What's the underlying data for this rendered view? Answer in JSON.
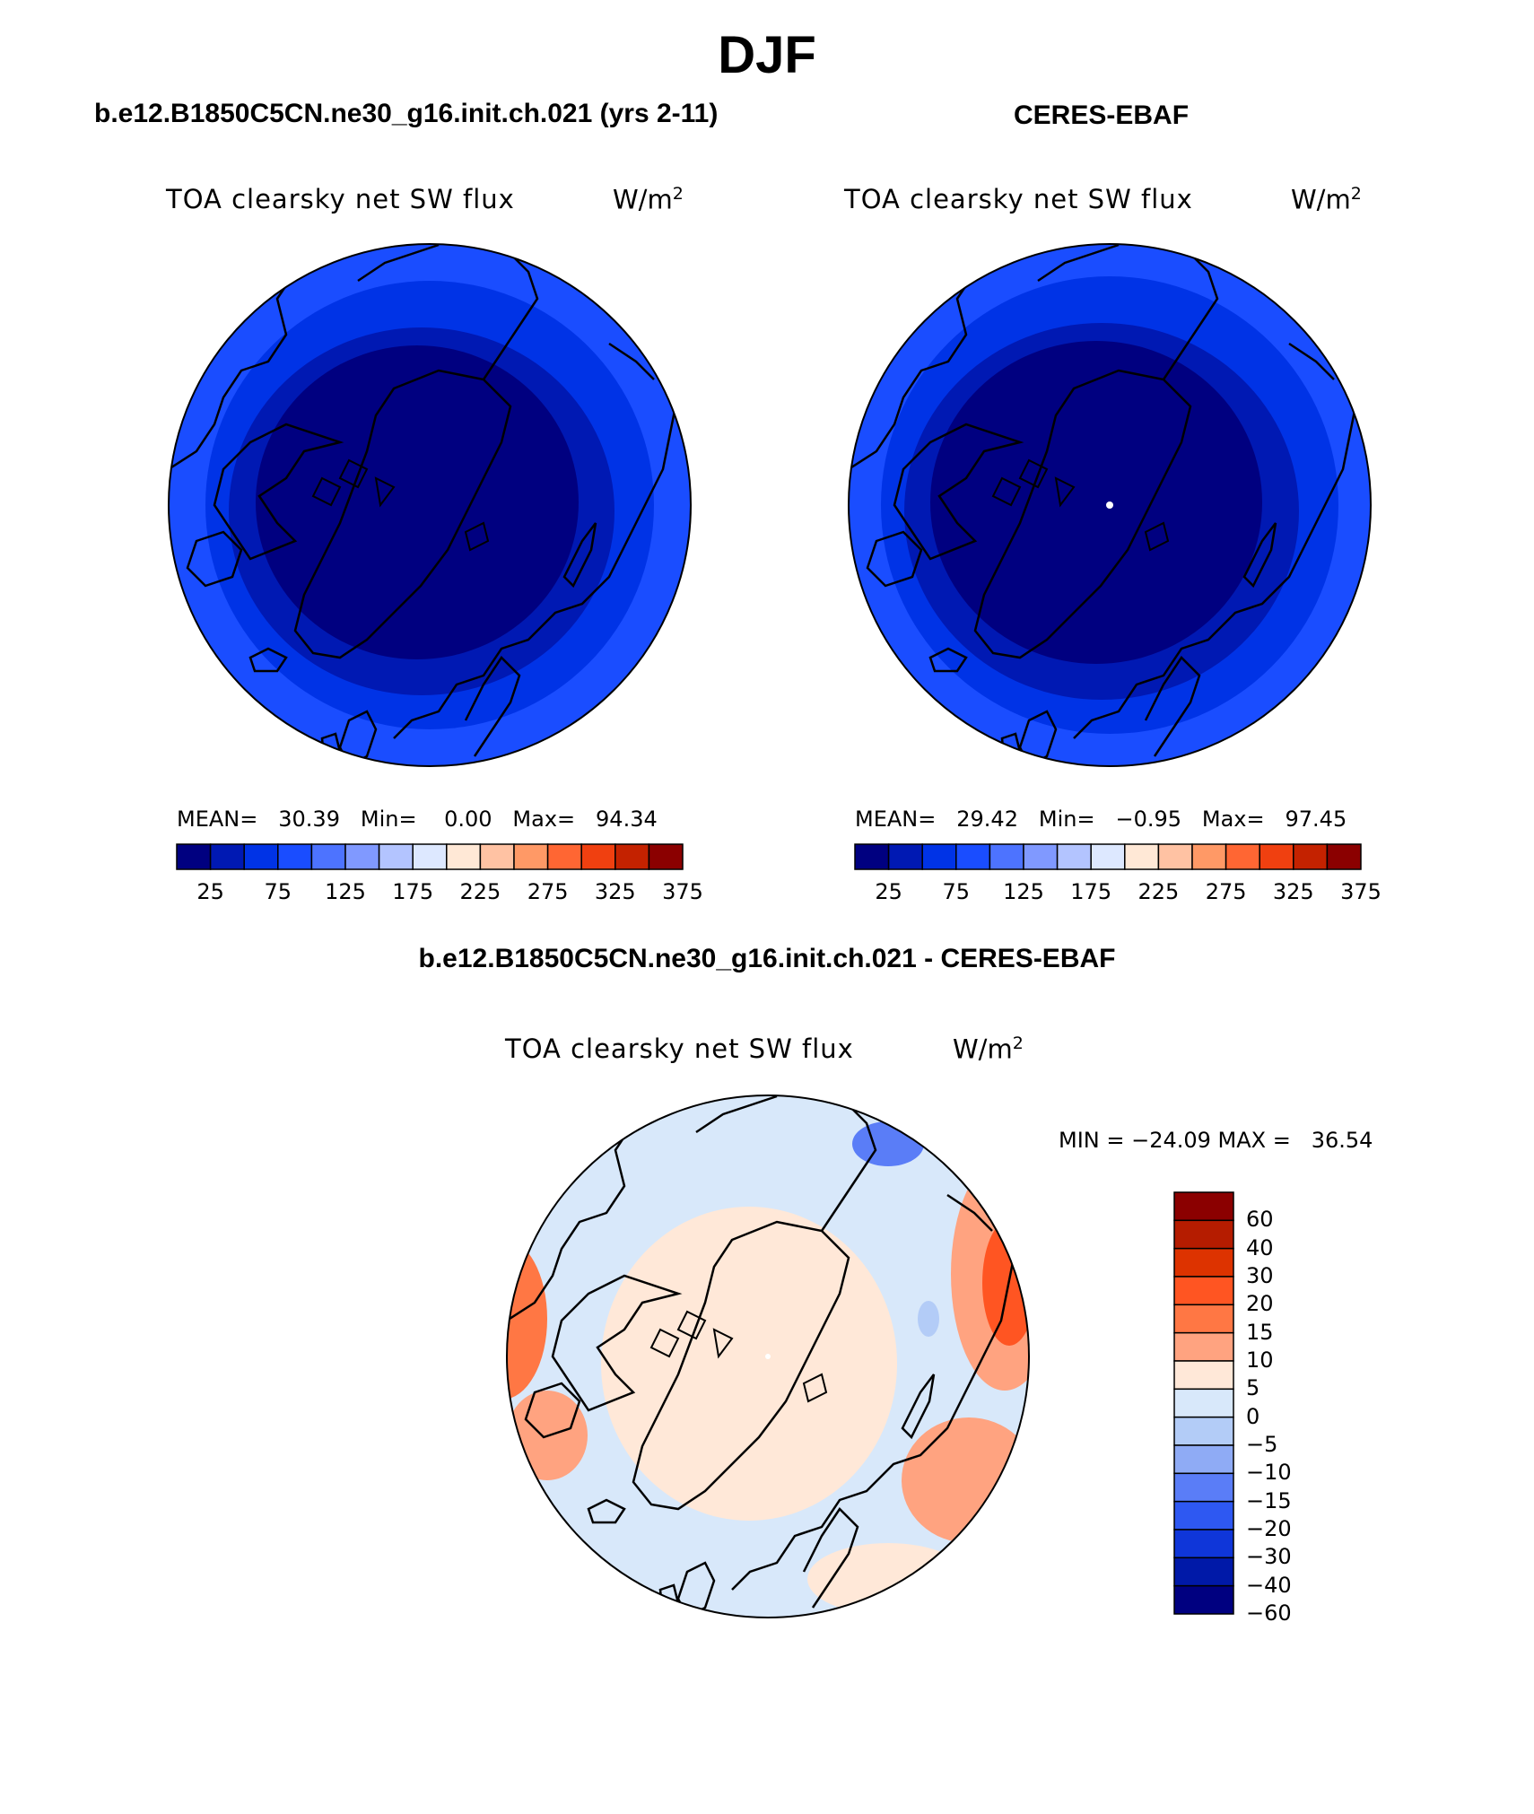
{
  "title": "DJF",
  "panels": [
    {
      "case_title": "b.e12.B1850C5CN.ne30_g16.init.ch.021 (yrs 2-11)",
      "variable": "TOA clearsky net SW flux",
      "units_base": "W/m",
      "units_exp": "2",
      "mean_label": "MEAN=",
      "mean": "30.39",
      "min_label": "Min=",
      "min": "0.00",
      "max_label": "Max=",
      "max": "94.34"
    },
    {
      "case_title": "CERES-EBAF",
      "variable": "TOA clearsky net SW flux",
      "units_base": "W/m",
      "units_exp": "2",
      "mean_label": "MEAN=",
      "mean": "29.42",
      "min_label": "Min=",
      "min": "−0.95",
      "max_label": "Max=",
      "max": "97.45"
    }
  ],
  "abs_colorbar": {
    "colors": [
      "#000080",
      "#0019b3",
      "#0033e6",
      "#1a4dff",
      "#4d73ff",
      "#8099ff",
      "#b3c4ff",
      "#dde8ff",
      "#ffe8d6",
      "#ffc2a3",
      "#ff9966",
      "#ff6633",
      "#f04010",
      "#c42200",
      "#8b0000"
    ],
    "labels": [
      "25",
      "75",
      "125",
      "175",
      "225",
      "275",
      "325",
      "375"
    ]
  },
  "diff": {
    "title": "b.e12.B1850C5CN.ne30_g16.init.ch.021 - CERES-EBAF",
    "variable": "TOA clearsky net SW flux",
    "units_base": "W/m",
    "units_exp": "2",
    "minmax": "MIN = −24.09 MAX =   36.54",
    "colorbar": {
      "colors": [
        "#8b0000",
        "#b51c00",
        "#dd3300",
        "#ff5522",
        "#ff7744",
        "#ffa380",
        "#ffe8d8",
        "#d8e8fa",
        "#b3ccf7",
        "#8fabf5",
        "#5a7df7",
        "#2e58f2",
        "#0f36d9",
        "#0019a8",
        "#000080"
      ],
      "labels": [
        "60",
        "40",
        "30",
        "20",
        "15",
        "10",
        "5",
        "0",
        "−5",
        "−10",
        "−15",
        "−20",
        "−30",
        "−40",
        "−60"
      ]
    }
  }
}
